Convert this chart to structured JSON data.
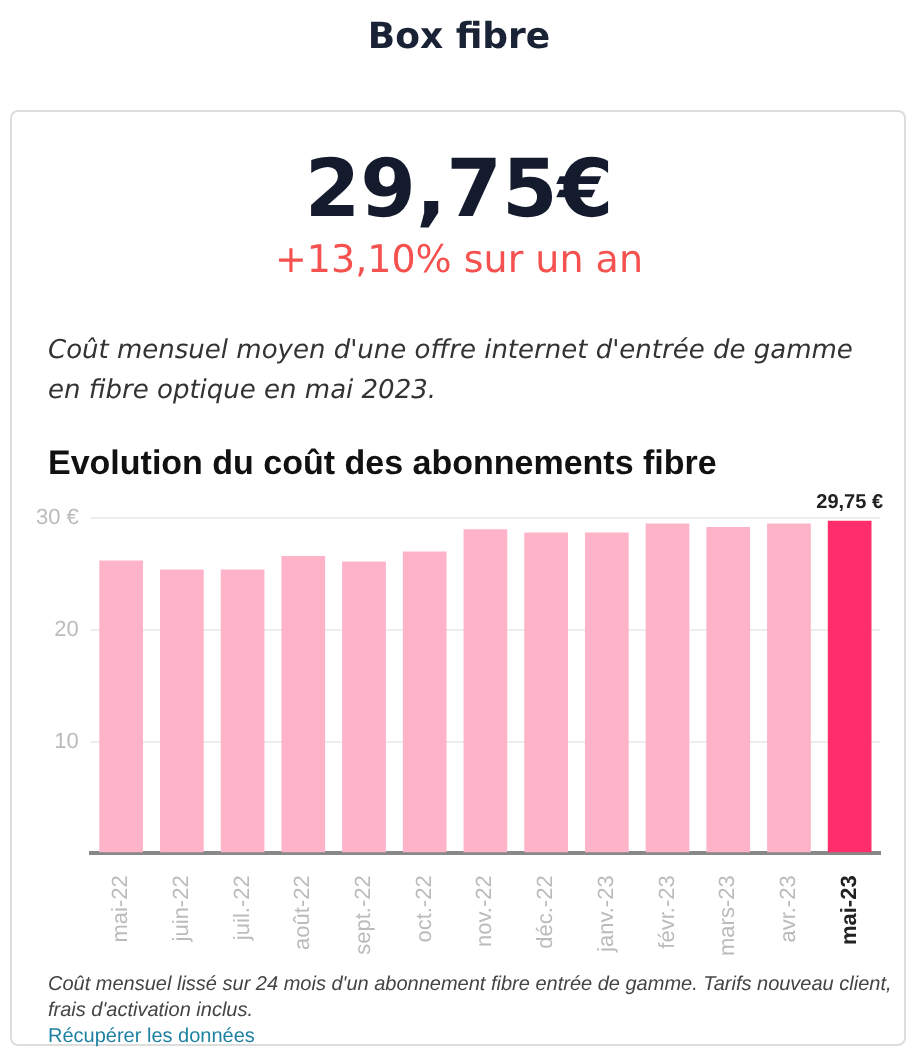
{
  "chart_data": {
    "type": "bar",
    "title": "Evolution du coût des abonnements fibre",
    "annotations": [
      "Box fibre",
      "29,75€",
      "+13,10% sur un an",
      "Coût mensuel moyen d'une offre internet d'entrée de gamme en fibre optique en mai 2023.",
      "Coût mensuel lissé sur 24 mois d'un abonnement fibre entrée de gamme. Tarifs nouveau client, frais d'activation inclus.",
      "Récupérer les données"
    ],
    "categories": [
      "mai-22",
      "juin-22",
      "juil.-22",
      "août-22",
      "sept.-22",
      "oct.-22",
      "nov.-22",
      "déc.-22",
      "janv.-23",
      "févr.-23",
      "mars-23",
      "avr.-23",
      "mai-23"
    ],
    "values": [
      26.2,
      25.4,
      25.4,
      26.6,
      26.1,
      27.0,
      29.0,
      28.7,
      28.7,
      29.5,
      29.2,
      29.5,
      29.75
    ],
    "colors": [
      "#ffb3c8",
      "#ffb3c8",
      "#ffb3c8",
      "#ffb3c8",
      "#ffb3c8",
      "#ffb3c8",
      "#ffb3c8",
      "#ffb3c8",
      "#ffb3c8",
      "#ffb3c8",
      "#ffb3c8",
      "#ffb3c8",
      "#ff2d6a"
    ],
    "value_labels": [
      null,
      null,
      null,
      null,
      null,
      null,
      null,
      null,
      null,
      null,
      null,
      null,
      "29,75 €"
    ],
    "ylim": [
      0,
      30
    ],
    "yticks": [
      {
        "value": 0,
        "label": null
      },
      10,
      20,
      {
        "value": 30,
        "label": "30 €"
      }
    ],
    "grid": "y"
  }
}
